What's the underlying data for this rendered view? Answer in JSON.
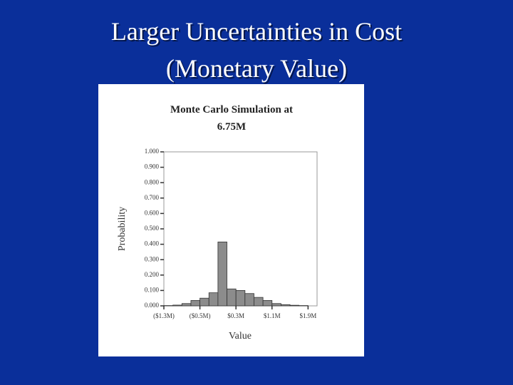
{
  "slide_title": [
    "Larger Uncertainties in Cost",
    "(Monetary Value)"
  ],
  "chart_data": {
    "type": "histogram",
    "title": [
      "Monte Carlo Simulation at",
      "6.75M"
    ],
    "x_label": "Value",
    "y_label": "Probability",
    "bins": [
      -1.3,
      -1.1,
      -0.9,
      -0.7,
      -0.5,
      -0.3,
      -0.1,
      0.1,
      0.3,
      0.5,
      0.7,
      0.9,
      1.1,
      1.3,
      1.5,
      1.7,
      1.9
    ],
    "values": [
      0.002,
      0.005,
      0.015,
      0.035,
      0.05,
      0.085,
      0.415,
      0.11,
      0.1,
      0.08,
      0.055,
      0.035,
      0.015,
      0.008,
      0.004,
      0.002
    ],
    "color": "#8c8c8c",
    "xlim": [
      -1.3,
      2.1
    ],
    "xticks": [
      {
        "value": -1.3,
        "label": "($1.3M)"
      },
      {
        "value": -0.5,
        "label": "($0.5M)"
      },
      {
        "value": 0.3,
        "label": "$0.3M"
      },
      {
        "value": 1.1,
        "label": "$1.1M"
      },
      {
        "value": 1.9,
        "label": "$1.9M"
      }
    ],
    "ylim": [
      0,
      1
    ],
    "yticks": [
      {
        "value": 0,
        "label": "0.000"
      },
      {
        "value": 0.1,
        "label": "0.100"
      },
      {
        "value": 0.2,
        "label": "0.200"
      },
      {
        "value": 0.3,
        "label": "0.300"
      },
      {
        "value": 0.4,
        "label": "0.400"
      },
      {
        "value": 0.5,
        "label": "0.500"
      },
      {
        "value": 0.6,
        "label": "0.600"
      },
      {
        "value": 0.7,
        "label": "0.700"
      },
      {
        "value": 0.8,
        "label": "0.800"
      },
      {
        "value": 0.9,
        "label": "0.900"
      },
      {
        "value": 1,
        "label": "1.000"
      }
    ]
  }
}
